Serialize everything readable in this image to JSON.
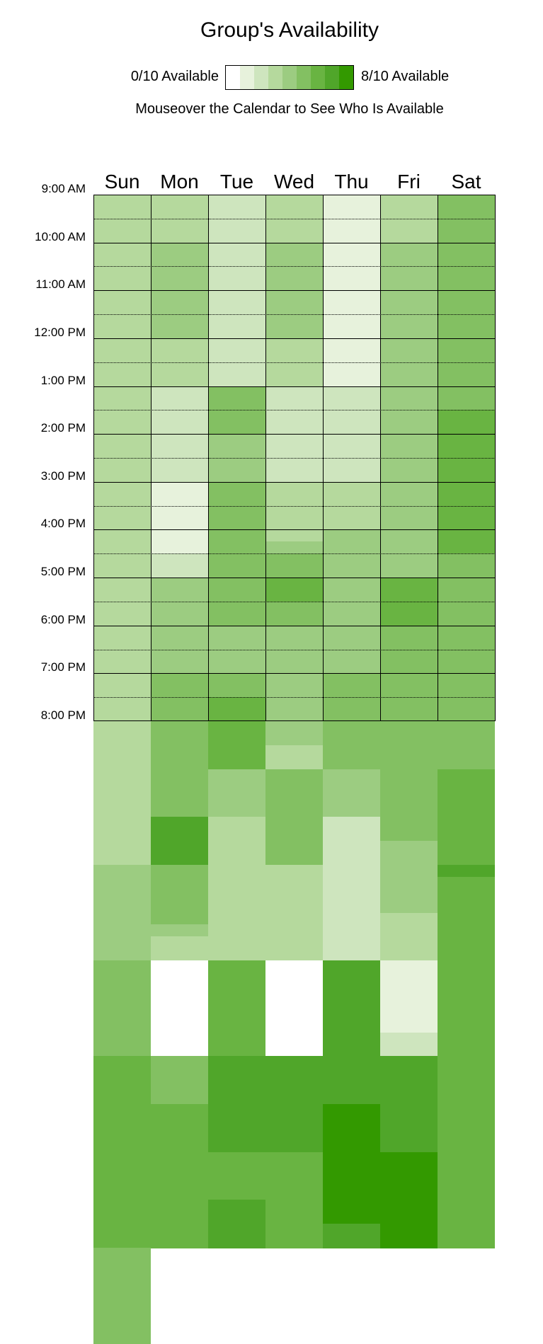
{
  "title": "Group's Availability",
  "legend": {
    "min_label": "0/10 Available",
    "max_label": "8/10 Available",
    "colors": [
      "#ffffff",
      "#e7f2dc",
      "#cee5be",
      "#b5d99d",
      "#9ccc81",
      "#83c062",
      "#69b442",
      "#50a62a",
      "#339900"
    ]
  },
  "hint": "Mouseover the Calendar to See Who Is Available",
  "days": [
    "Sun",
    "Mon",
    "Tue",
    "Wed",
    "Thu",
    "Fri",
    "Sat"
  ],
  "time_labels": [
    "9:00 AM",
    "10:00 AM",
    "11:00 AM",
    "12:00 PM",
    "1:00 PM",
    "2:00 PM",
    "3:00 PM",
    "4:00 PM",
    "5:00 PM",
    "6:00 PM",
    "7:00 PM",
    "8:00 PM"
  ],
  "slot_minutes": 15,
  "availability": {
    "Sun": [
      3,
      3,
      3,
      3,
      3,
      3,
      3,
      3,
      3,
      3,
      3,
      3,
      3,
      3,
      3,
      3,
      3,
      3,
      3,
      3,
      3,
      3,
      3,
      3,
      3,
      3,
      3,
      3,
      3,
      3,
      3,
      3,
      3,
      3,
      3,
      3,
      3,
      3,
      3,
      3,
      3,
      3,
      3,
      3,
      3,
      3,
      3,
      3,
      3,
      3,
      3,
      3,
      3,
      3,
      3,
      3,
      4,
      4,
      4,
      4,
      4,
      4,
      4,
      4,
      5,
      5,
      5,
      5,
      5,
      5,
      5,
      5,
      6,
      6,
      6,
      6,
      6,
      6,
      6,
      6,
      6,
      6,
      6,
      6,
      6,
      6,
      6,
      6,
      5,
      5,
      5,
      5,
      5,
      5,
      5,
      5
    ],
    "Mon": [
      3,
      3,
      3,
      3,
      4,
      4,
      4,
      4,
      4,
      4,
      4,
      4,
      3,
      3,
      3,
      3,
      2,
      2,
      2,
      2,
      2,
      2,
      2,
      2,
      1,
      1,
      1,
      1,
      1,
      1,
      2,
      2,
      4,
      4,
      4,
      4,
      4,
      4,
      4,
      4,
      5,
      5,
      5,
      5,
      5,
      5,
      5,
      5,
      5,
      5,
      5,
      5,
      7,
      7,
      7,
      7,
      5,
      5,
      5,
      5,
      5,
      4,
      3,
      3,
      0,
      0,
      0,
      0,
      0,
      0,
      0,
      0,
      5,
      5,
      5,
      5,
      6,
      6,
      6,
      6,
      6,
      6,
      6,
      6,
      6,
      6,
      6,
      6
    ],
    "Tue": [
      2,
      2,
      2,
      2,
      2,
      2,
      2,
      2,
      2,
      2,
      2,
      2,
      2,
      2,
      2,
      2,
      5,
      5,
      5,
      5,
      4,
      4,
      4,
      4,
      5,
      5,
      5,
      5,
      5,
      5,
      5,
      5,
      5,
      5,
      5,
      5,
      4,
      4,
      4,
      4,
      5,
      5,
      6,
      6,
      6,
      6,
      6,
      6,
      4,
      4,
      4,
      4,
      3,
      3,
      3,
      3,
      3,
      3,
      3,
      3,
      3,
      3,
      3,
      3,
      6,
      6,
      6,
      6,
      6,
      6,
      6,
      6,
      7,
      7,
      7,
      7,
      7,
      7,
      7,
      7,
      6,
      6,
      6,
      6,
      7,
      7,
      7,
      7
    ],
    "Wed": [
      3,
      3,
      3,
      3,
      4,
      4,
      4,
      4,
      4,
      4,
      4,
      4,
      3,
      3,
      3,
      3,
      2,
      2,
      2,
      2,
      2,
      2,
      2,
      2,
      3,
      3,
      3,
      3,
      3,
      4,
      5,
      5,
      6,
      6,
      5,
      5,
      4,
      4,
      4,
      4,
      4,
      4,
      4,
      4,
      4,
      4,
      3,
      3,
      5,
      5,
      5,
      5,
      5,
      5,
      5,
      5,
      3,
      3,
      3,
      3,
      3,
      3,
      3,
      3,
      0,
      0,
      0,
      0,
      0,
      0,
      0,
      0,
      7,
      7,
      7,
      7,
      7,
      7,
      7,
      7,
      6,
      6,
      6,
      6,
      6,
      6,
      6,
      6
    ],
    "Thu": [
      1,
      1,
      1,
      1,
      1,
      1,
      1,
      1,
      1,
      1,
      1,
      1,
      1,
      1,
      1,
      1,
      2,
      2,
      2,
      2,
      2,
      2,
      2,
      2,
      3,
      3,
      3,
      3,
      4,
      4,
      4,
      4,
      4,
      4,
      4,
      4,
      4,
      4,
      4,
      4,
      5,
      5,
      5,
      5,
      5,
      5,
      5,
      5,
      4,
      4,
      4,
      4,
      2,
      2,
      2,
      2,
      2,
      2,
      2,
      2,
      2,
      2,
      2,
      2,
      7,
      7,
      7,
      7,
      7,
      7,
      7,
      7,
      7,
      7,
      7,
      7,
      8,
      8,
      8,
      8,
      8,
      8,
      8,
      8,
      8,
      8,
      7,
      7
    ],
    "Fri": [
      3,
      3,
      3,
      3,
      4,
      4,
      4,
      4,
      4,
      4,
      4,
      4,
      4,
      4,
      4,
      4,
      4,
      4,
      4,
      4,
      4,
      4,
      4,
      4,
      4,
      4,
      4,
      4,
      4,
      4,
      4,
      4,
      6,
      6,
      6,
      6,
      5,
      5,
      5,
      5,
      5,
      5,
      5,
      5,
      5,
      5,
      5,
      5,
      5,
      5,
      5,
      5,
      5,
      5,
      4,
      4,
      4,
      4,
      4,
      4,
      3,
      3,
      3,
      3,
      1,
      1,
      1,
      1,
      1,
      1,
      2,
      2,
      7,
      7,
      7,
      7,
      7,
      7,
      7,
      7,
      8,
      8,
      8,
      8,
      8,
      8,
      8,
      8
    ],
    "Sat": [
      5,
      5,
      5,
      5,
      5,
      5,
      5,
      5,
      5,
      5,
      5,
      5,
      5,
      5,
      5,
      5,
      5,
      5,
      6,
      6,
      6,
      6,
      6,
      6,
      6,
      6,
      6,
      6,
      6,
      6,
      5,
      5,
      5,
      5,
      5,
      5,
      5,
      5,
      5,
      5,
      5,
      5,
      5,
      5,
      5,
      5,
      5,
      5,
      6,
      6,
      6,
      6,
      6,
      6,
      6,
      6,
      7,
      6,
      6,
      6,
      6,
      6,
      6,
      6,
      6,
      6,
      6,
      6,
      6,
      6,
      6,
      6,
      6,
      6,
      6,
      6,
      6,
      6,
      6,
      6,
      6,
      6,
      6,
      6,
      6,
      6,
      6,
      6
    ]
  }
}
